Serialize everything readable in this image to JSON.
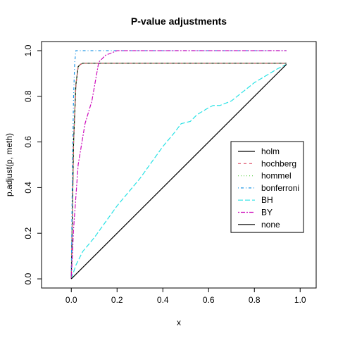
{
  "chart_data": {
    "type": "line",
    "title": "P-value adjustments",
    "xlabel": "x",
    "ylabel": "p.adjust(p, meth)",
    "xlim": [
      -0.13,
      1.07
    ],
    "ylim": [
      -0.04,
      1.04
    ],
    "xticks": [
      0.0,
      0.2,
      0.4,
      0.6,
      0.8,
      1.0
    ],
    "xtick_labels": [
      "0.0",
      "0.2",
      "0.4",
      "0.6",
      "0.8",
      "1.0"
    ],
    "yticks": [
      0.0,
      0.2,
      0.4,
      0.6,
      0.8,
      1.0
    ],
    "ytick_labels": [
      "0.0",
      "0.2",
      "0.4",
      "0.6",
      "0.8",
      "1.0"
    ],
    "grid": false,
    "legend_position": "right",
    "series": [
      {
        "name": "holm",
        "color": "#000000",
        "dash": "solid",
        "x": [
          0.0,
          0.01,
          0.02,
          0.03,
          0.04,
          0.05,
          0.94
        ],
        "y": [
          0.0,
          0.6,
          0.85,
          0.93,
          0.94,
          0.945,
          0.945
        ]
      },
      {
        "name": "hochberg",
        "color": "#DF536B",
        "dash": "dashed",
        "x": [
          0.0,
          0.01,
          0.02,
          0.03,
          0.04,
          0.05,
          0.94
        ],
        "y": [
          0.0,
          0.6,
          0.85,
          0.93,
          0.94,
          0.945,
          0.945
        ]
      },
      {
        "name": "hommel",
        "color": "#61D04F",
        "dash": "dotted",
        "x": [
          0.0,
          0.01,
          0.02,
          0.03,
          0.04,
          0.05,
          0.94
        ],
        "y": [
          0.0,
          0.6,
          0.85,
          0.93,
          0.94,
          0.945,
          0.945
        ]
      },
      {
        "name": "bonferroni",
        "color": "#2297E6",
        "dash": "dotdash",
        "x": [
          0.0,
          0.005,
          0.01,
          0.015,
          0.02,
          0.94
        ],
        "y": [
          0.0,
          0.5,
          0.8,
          0.95,
          1.0,
          1.0
        ]
      },
      {
        "name": "BH",
        "color": "#28E2E5",
        "dash": "longdash",
        "x": [
          0.0,
          0.02,
          0.05,
          0.1,
          0.15,
          0.2,
          0.25,
          0.3,
          0.35,
          0.4,
          0.45,
          0.48,
          0.52,
          0.55,
          0.6,
          0.62,
          0.65,
          0.7,
          0.75,
          0.8,
          0.85,
          0.9,
          0.94
        ],
        "y": [
          0.0,
          0.06,
          0.12,
          0.18,
          0.25,
          0.32,
          0.38,
          0.44,
          0.51,
          0.58,
          0.64,
          0.68,
          0.69,
          0.72,
          0.75,
          0.76,
          0.76,
          0.78,
          0.82,
          0.86,
          0.89,
          0.92,
          0.94
        ]
      },
      {
        "name": "BY",
        "color": "#CD0BBC",
        "dash": "twodash",
        "x": [
          0.0,
          0.01,
          0.03,
          0.06,
          0.09,
          0.12,
          0.15,
          0.2,
          0.94
        ],
        "y": [
          0.0,
          0.22,
          0.5,
          0.68,
          0.78,
          0.95,
          0.98,
          1.0,
          1.0
        ]
      },
      {
        "name": "none",
        "color": "#000000",
        "dash": "solid",
        "x": [
          0.0,
          0.94
        ],
        "y": [
          0.0,
          0.94
        ]
      }
    ]
  }
}
